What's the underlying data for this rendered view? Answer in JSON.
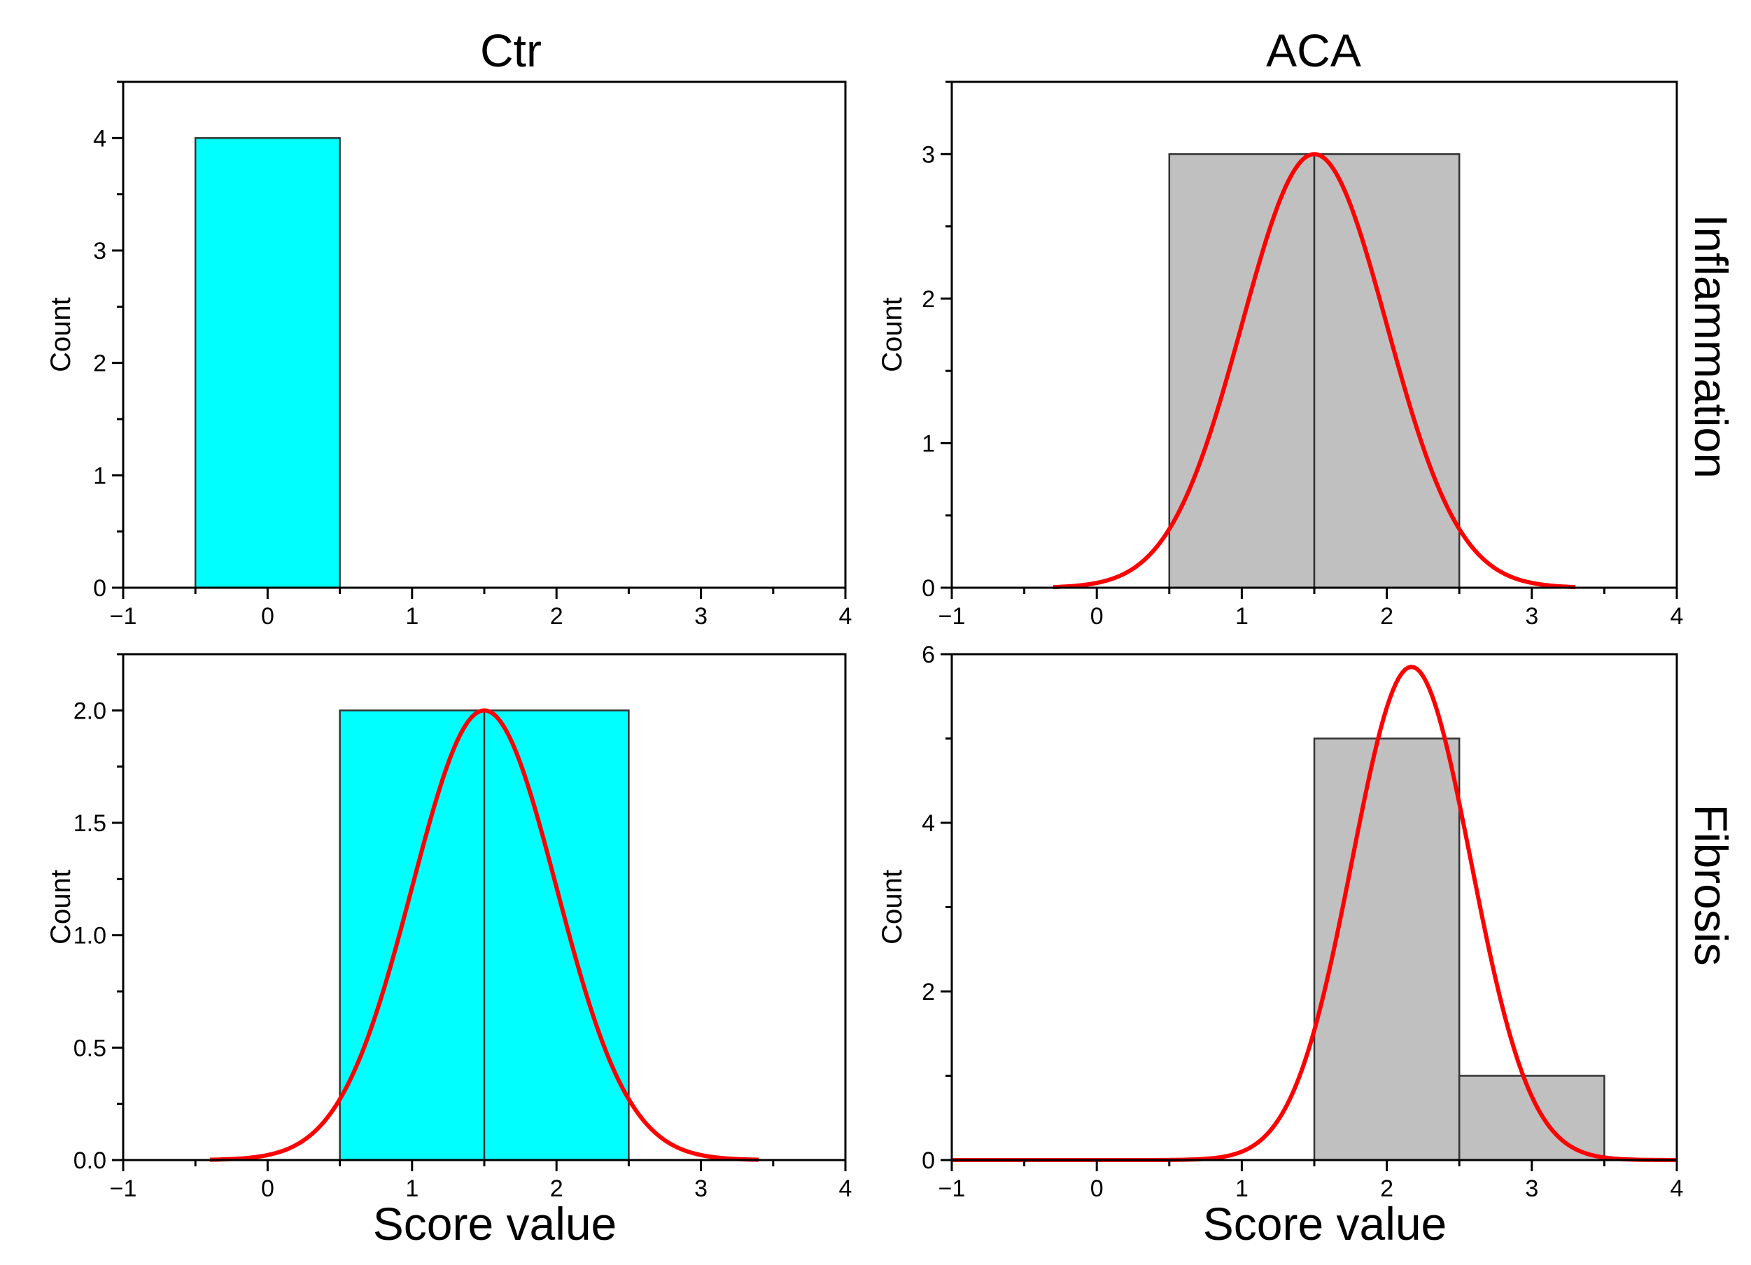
{
  "figure": {
    "col_titles": [
      "Ctr",
      "ACA"
    ],
    "row_titles": [
      "Inflammation",
      "Fibrosis"
    ],
    "x_titles": [
      "Score value",
      "Score value"
    ]
  },
  "chart_data": [
    {
      "type": "bar",
      "panel": "Ctr / Inflammation",
      "bin_edges": [
        -0.5,
        0.5
      ],
      "counts": [
        4
      ],
      "bar_color": "#00ffff",
      "fit_curve": null,
      "xlabel": "",
      "ylabel": "Count",
      "xlim": [
        -1,
        4
      ],
      "ylim": [
        0,
        4.5
      ],
      "xticks": [
        -1,
        0,
        1,
        2,
        3,
        4
      ],
      "xtick_labels": [
        "−1",
        "0",
        "1",
        "2",
        "3",
        "4"
      ],
      "yticks": [
        0,
        1,
        2,
        3,
        4
      ],
      "ytick_labels": [
        "0",
        "1",
        "2",
        "3",
        "4"
      ]
    },
    {
      "type": "bar",
      "panel": "ACA / Inflammation",
      "bin_edges": [
        0.5,
        1.5,
        2.5
      ],
      "counts": [
        3,
        3
      ],
      "bar_color": "#c0c0c0",
      "fit_curve": {
        "type": "normal",
        "mean": 1.5,
        "sd": 0.5,
        "peak": 3,
        "x_range": [
          -0.3,
          3.3
        ],
        "color": "#ff0000"
      },
      "xlabel": "",
      "ylabel": "Count",
      "xlim": [
        -1,
        4
      ],
      "ylim": [
        0,
        3.5
      ],
      "xticks": [
        -1,
        0,
        1,
        2,
        3,
        4
      ],
      "xtick_labels": [
        "−1",
        "0",
        "1",
        "2",
        "3",
        "4"
      ],
      "yticks": [
        0,
        1,
        2,
        3
      ],
      "ytick_labels": [
        "0",
        "1",
        "2",
        "3"
      ]
    },
    {
      "type": "bar",
      "panel": "Ctr / Fibrosis",
      "bin_edges": [
        0.5,
        1.5,
        2.5
      ],
      "counts": [
        2,
        2
      ],
      "bar_color": "#00ffff",
      "fit_curve": {
        "type": "normal",
        "mean": 1.5,
        "sd": 0.5,
        "peak": 2,
        "x_range": [
          -0.4,
          3.4
        ],
        "color": "#ff0000"
      },
      "xlabel": "Score value",
      "ylabel": "Count",
      "xlim": [
        -1,
        4
      ],
      "ylim": [
        0,
        2.25
      ],
      "xticks": [
        -1,
        0,
        1,
        2,
        3,
        4
      ],
      "xtick_labels": [
        "−1",
        "0",
        "1",
        "2",
        "3",
        "4"
      ],
      "yticks": [
        0,
        0.5,
        1.0,
        1.5,
        2.0
      ],
      "ytick_labels": [
        "0.0",
        "0.5",
        "1.0",
        "1.5",
        "2.0"
      ]
    },
    {
      "type": "bar",
      "panel": "ACA / Fibrosis",
      "bin_edges": [
        1.5,
        2.5,
        3.5
      ],
      "counts": [
        5,
        1
      ],
      "bar_color": "#c0c0c0",
      "fit_curve": {
        "type": "normal",
        "mean": 2.17,
        "sd": 0.41,
        "peak": 5.85,
        "x_range": [
          -1,
          4
        ],
        "color": "#ff0000"
      },
      "xlabel": "Score value",
      "ylabel": "Count",
      "xlim": [
        -1,
        4
      ],
      "ylim": [
        0,
        6
      ],
      "xticks": [
        -1,
        0,
        1,
        2,
        3,
        4
      ],
      "xtick_labels": [
        "−1",
        "0",
        "1",
        "2",
        "3",
        "4"
      ],
      "yticks": [
        0,
        2,
        4,
        6
      ],
      "ytick_labels": [
        "0",
        "2",
        "4",
        "6"
      ]
    }
  ]
}
